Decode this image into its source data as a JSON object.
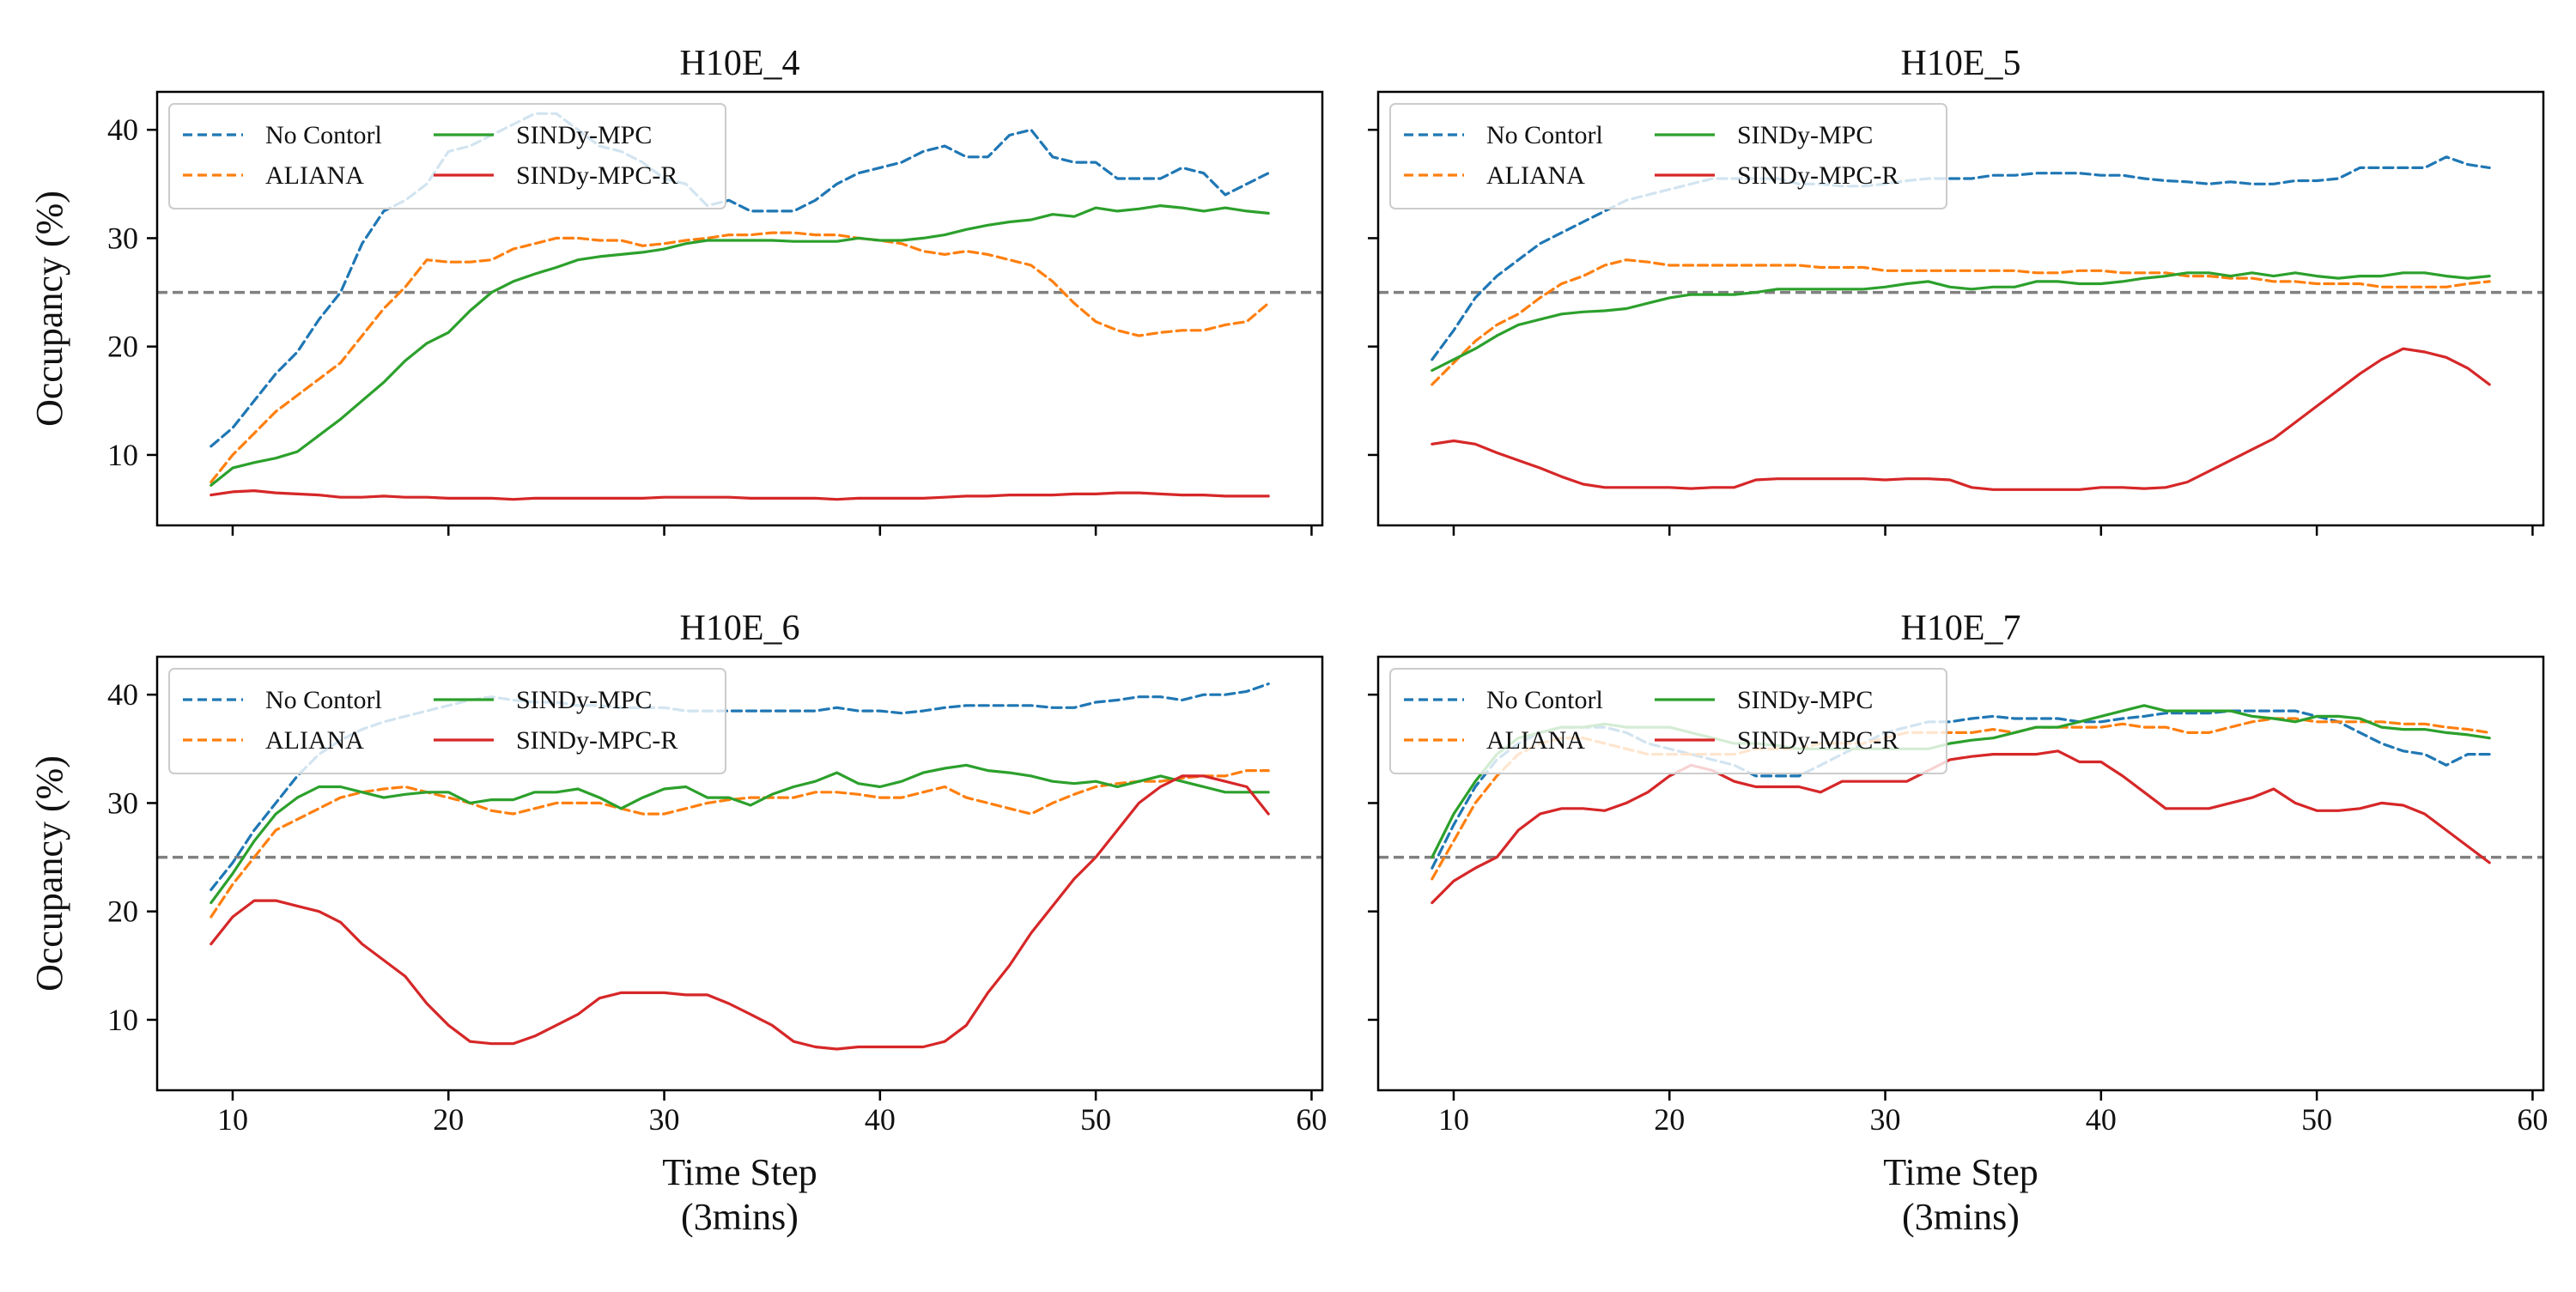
{
  "chart_data": {
    "type": "line",
    "xlabel": [
      "Time Step",
      "(3mins)"
    ],
    "ylabel": "Occupancy (%)",
    "xlim": [
      6.5,
      60.5
    ],
    "ylim": [
      3.5,
      43.5
    ],
    "xticks": [
      10,
      20,
      30,
      40,
      50,
      60
    ],
    "yticks": [
      10,
      20,
      30,
      40
    ],
    "reference_line": {
      "y": 25,
      "style": "dashed",
      "color": "#808080"
    },
    "legend": {
      "placement": "top-left",
      "columns": 2
    },
    "series_styles": [
      {
        "name": "No Contorl",
        "color": "#1f77b4",
        "dashed": true
      },
      {
        "name": "ALIANA",
        "color": "#ff7f0e",
        "dashed": true
      },
      {
        "name": "SINDy-MPC",
        "color": "#2ca02c",
        "dashed": false
      },
      {
        "name": "SINDy-MPC-R",
        "color": "#d62728",
        "dashed": false
      }
    ],
    "x": [
      9,
      10,
      11,
      12,
      13,
      14,
      15,
      16,
      17,
      18,
      19,
      20,
      21,
      22,
      23,
      24,
      25,
      26,
      27,
      28,
      29,
      30,
      31,
      32,
      33,
      34,
      35,
      36,
      37,
      38,
      39,
      40,
      41,
      42,
      43,
      44,
      45,
      46,
      47,
      48,
      49,
      50,
      51,
      52,
      53,
      54,
      55,
      56,
      57,
      58
    ],
    "panels": [
      {
        "title": "H10E_4",
        "series": [
          {
            "name": "No Contorl",
            "values": [
              10.8,
              12.5,
              15.0,
              17.5,
              19.5,
              22.5,
              25.0,
              29.5,
              32.5,
              33.5,
              35.0,
              38.0,
              38.5,
              39.5,
              40.5,
              41.5,
              41.5,
              40.0,
              38.5,
              38.0,
              37.0,
              35.5,
              35.0,
              33.0,
              33.5,
              32.5,
              32.5,
              32.5,
              33.5,
              35.0,
              36.0,
              36.5,
              37.0,
              38.0,
              38.5,
              37.5,
              37.5,
              39.5,
              40.0,
              37.5,
              37.0,
              37.0,
              35.5,
              35.5,
              35.5,
              36.5,
              36.0,
              34.0,
              35.0,
              36.0
            ]
          },
          {
            "name": "ALIANA",
            "values": [
              7.5,
              10.0,
              12.0,
              14.0,
              15.5,
              17.0,
              18.5,
              21.0,
              23.5,
              25.5,
              28.0,
              27.8,
              27.8,
              28.0,
              29.0,
              29.5,
              30.0,
              30.0,
              29.8,
              29.8,
              29.3,
              29.5,
              29.8,
              30.0,
              30.3,
              30.3,
              30.5,
              30.5,
              30.3,
              30.3,
              30.0,
              29.8,
              29.5,
              28.8,
              28.5,
              28.8,
              28.5,
              28.0,
              27.5,
              26.0,
              24.0,
              22.3,
              21.5,
              21.0,
              21.3,
              21.5,
              21.5,
              22.0,
              22.3,
              24.0
            ]
          },
          {
            "name": "SINDy-MPC",
            "values": [
              7.2,
              8.8,
              9.3,
              9.7,
              10.3,
              11.8,
              13.3,
              15.0,
              16.7,
              18.7,
              20.3,
              21.3,
              23.3,
              25.0,
              26.0,
              26.7,
              27.3,
              28.0,
              28.3,
              28.5,
              28.7,
              29.0,
              29.5,
              29.8,
              29.8,
              29.8,
              29.8,
              29.7,
              29.7,
              29.7,
              30.0,
              29.8,
              29.8,
              30.0,
              30.3,
              30.8,
              31.2,
              31.5,
              31.7,
              32.2,
              32.0,
              32.8,
              32.5,
              32.7,
              33.0,
              32.8,
              32.5,
              32.8,
              32.5,
              32.3
            ]
          },
          {
            "name": "SINDy-MPC-R",
            "values": [
              6.3,
              6.6,
              6.7,
              6.5,
              6.4,
              6.3,
              6.1,
              6.1,
              6.2,
              6.1,
              6.1,
              6.0,
              6.0,
              6.0,
              5.9,
              6.0,
              6.0,
              6.0,
              6.0,
              6.0,
              6.0,
              6.1,
              6.1,
              6.1,
              6.1,
              6.0,
              6.0,
              6.0,
              6.0,
              5.9,
              6.0,
              6.0,
              6.0,
              6.0,
              6.1,
              6.2,
              6.2,
              6.3,
              6.3,
              6.3,
              6.4,
              6.4,
              6.5,
              6.5,
              6.4,
              6.3,
              6.3,
              6.2,
              6.2,
              6.2
            ]
          }
        ]
      },
      {
        "title": "H10E_5",
        "series": [
          {
            "name": "No Contorl",
            "values": [
              18.8,
              21.5,
              24.5,
              26.5,
              28.0,
              29.5,
              30.5,
              31.5,
              32.5,
              33.5,
              34.0,
              34.5,
              35.0,
              35.5,
              35.5,
              35.5,
              35.5,
              35.0,
              35.0,
              34.8,
              34.8,
              35.0,
              35.3,
              35.5,
              35.5,
              35.5,
              35.8,
              35.8,
              36.0,
              36.0,
              36.0,
              35.8,
              35.8,
              35.5,
              35.3,
              35.2,
              35.0,
              35.2,
              35.0,
              35.0,
              35.3,
              35.3,
              35.5,
              36.5,
              36.5,
              36.5,
              36.5,
              37.5,
              36.8,
              36.5
            ]
          },
          {
            "name": "ALIANA",
            "values": [
              16.5,
              18.5,
              20.5,
              22.0,
              23.0,
              24.5,
              25.8,
              26.5,
              27.5,
              28.0,
              27.8,
              27.5,
              27.5,
              27.5,
              27.5,
              27.5,
              27.5,
              27.5,
              27.3,
              27.3,
              27.3,
              27.0,
              27.0,
              27.0,
              27.0,
              27.0,
              27.0,
              27.0,
              26.8,
              26.8,
              27.0,
              27.0,
              26.8,
              26.8,
              26.8,
              26.5,
              26.5,
              26.3,
              26.3,
              26.0,
              26.0,
              25.8,
              25.8,
              25.8,
              25.5,
              25.5,
              25.5,
              25.5,
              25.8,
              26.0
            ]
          },
          {
            "name": "SINDy-MPC",
            "values": [
              17.8,
              18.8,
              19.8,
              21.0,
              22.0,
              22.5,
              23.0,
              23.2,
              23.3,
              23.5,
              24.0,
              24.5,
              24.8,
              24.8,
              24.8,
              25.0,
              25.3,
              25.3,
              25.3,
              25.3,
              25.3,
              25.5,
              25.8,
              26.0,
              25.5,
              25.3,
              25.5,
              25.5,
              26.0,
              26.0,
              25.8,
              25.8,
              26.0,
              26.3,
              26.5,
              26.8,
              26.8,
              26.5,
              26.8,
              26.5,
              26.8,
              26.5,
              26.3,
              26.5,
              26.5,
              26.8,
              26.8,
              26.5,
              26.3,
              26.5
            ]
          },
          {
            "name": "SINDy-MPC-R",
            "values": [
              11.0,
              11.3,
              11.0,
              10.2,
              9.5,
              8.8,
              8.0,
              7.3,
              7.0,
              7.0,
              7.0,
              7.0,
              6.9,
              7.0,
              7.0,
              7.7,
              7.8,
              7.8,
              7.8,
              7.8,
              7.8,
              7.7,
              7.8,
              7.8,
              7.7,
              7.0,
              6.8,
              6.8,
              6.8,
              6.8,
              6.8,
              7.0,
              7.0,
              6.9,
              7.0,
              7.5,
              8.5,
              9.5,
              10.5,
              11.5,
              13.0,
              14.5,
              16.0,
              17.5,
              18.8,
              19.8,
              19.5,
              19.0,
              18.0,
              16.5
            ]
          }
        ]
      },
      {
        "title": "H10E_6",
        "series": [
          {
            "name": "No Contorl",
            "values": [
              22.0,
              24.5,
              27.5,
              30.0,
              32.5,
              34.5,
              35.8,
              36.8,
              37.5,
              38.0,
              38.5,
              39.0,
              39.5,
              39.8,
              39.5,
              39.3,
              39.3,
              39.0,
              39.0,
              38.8,
              38.8,
              38.8,
              38.5,
              38.5,
              38.5,
              38.5,
              38.5,
              38.5,
              38.5,
              38.8,
              38.5,
              38.5,
              38.3,
              38.5,
              38.8,
              39.0,
              39.0,
              39.0,
              39.0,
              38.8,
              38.8,
              39.3,
              39.5,
              39.8,
              39.8,
              39.5,
              40.0,
              40.0,
              40.3,
              41.0
            ]
          },
          {
            "name": "ALIANA",
            "values": [
              19.5,
              22.5,
              25.0,
              27.5,
              28.5,
              29.5,
              30.5,
              31.0,
              31.3,
              31.5,
              31.0,
              30.5,
              30.0,
              29.3,
              29.0,
              29.5,
              30.0,
              30.0,
              30.0,
              29.5,
              29.0,
              29.0,
              29.5,
              30.0,
              30.3,
              30.5,
              30.5,
              30.5,
              31.0,
              31.0,
              30.8,
              30.5,
              30.5,
              31.0,
              31.5,
              30.5,
              30.0,
              29.5,
              29.0,
              30.0,
              30.8,
              31.5,
              31.8,
              32.0,
              32.0,
              32.3,
              32.5,
              32.5,
              33.0,
              33.0
            ]
          },
          {
            "name": "SINDy-MPC",
            "values": [
              20.8,
              23.5,
              26.5,
              29.0,
              30.5,
              31.5,
              31.5,
              31.0,
              30.5,
              30.8,
              31.0,
              31.0,
              30.0,
              30.3,
              30.3,
              31.0,
              31.0,
              31.3,
              30.5,
              29.5,
              30.5,
              31.3,
              31.5,
              30.5,
              30.5,
              29.8,
              30.8,
              31.5,
              32.0,
              32.8,
              31.8,
              31.5,
              32.0,
              32.8,
              33.2,
              33.5,
              33.0,
              32.8,
              32.5,
              32.0,
              31.8,
              32.0,
              31.5,
              32.0,
              32.5,
              32.0,
              31.5,
              31.0,
              31.0,
              31.0
            ]
          },
          {
            "name": "SINDy-MPC-R",
            "values": [
              17.0,
              19.5,
              21.0,
              21.0,
              20.5,
              20.0,
              19.0,
              17.0,
              15.5,
              14.0,
              11.5,
              9.5,
              8.0,
              7.8,
              7.8,
              8.5,
              9.5,
              10.5,
              12.0,
              12.5,
              12.5,
              12.5,
              12.3,
              12.3,
              11.5,
              10.5,
              9.5,
              8.0,
              7.5,
              7.3,
              7.5,
              7.5,
              7.5,
              7.5,
              8.0,
              9.5,
              12.5,
              15.0,
              18.0,
              20.5,
              23.0,
              25.0,
              27.5,
              30.0,
              31.5,
              32.5,
              32.5,
              32.0,
              31.5,
              29.0
            ]
          }
        ]
      },
      {
        "title": "H10E_7",
        "series": [
          {
            "name": "No Contorl",
            "values": [
              24.0,
              28.0,
              31.5,
              34.0,
              35.5,
              36.5,
              37.0,
              37.0,
              37.0,
              36.5,
              35.5,
              35.0,
              34.5,
              34.0,
              33.5,
              32.5,
              32.5,
              32.5,
              33.5,
              34.5,
              35.5,
              36.5,
              37.0,
              37.5,
              37.5,
              37.8,
              38.0,
              37.8,
              37.8,
              37.8,
              37.5,
              37.5,
              37.8,
              38.0,
              38.3,
              38.3,
              38.3,
              38.5,
              38.5,
              38.5,
              38.5,
              38.0,
              37.5,
              36.5,
              35.5,
              34.8,
              34.5,
              33.5,
              34.5,
              34.5
            ]
          },
          {
            "name": "ALIANA",
            "values": [
              23.0,
              26.5,
              30.0,
              32.5,
              34.5,
              35.5,
              36.0,
              36.0,
              35.5,
              35.0,
              34.5,
              34.5,
              34.5,
              34.5,
              34.5,
              35.0,
              35.0,
              35.0,
              35.5,
              35.5,
              35.5,
              36.0,
              36.5,
              36.5,
              36.5,
              36.5,
              36.8,
              36.5,
              37.0,
              37.0,
              37.0,
              37.0,
              37.3,
              37.0,
              37.0,
              36.5,
              36.5,
              37.0,
              37.5,
              37.8,
              37.8,
              37.5,
              37.5,
              37.5,
              37.5,
              37.3,
              37.3,
              37.0,
              36.8,
              36.5
            ]
          },
          {
            "name": "SINDy-MPC",
            "values": [
              25.0,
              29.0,
              32.0,
              34.5,
              36.0,
              36.5,
              37.0,
              37.0,
              37.3,
              37.0,
              37.0,
              37.0,
              36.5,
              36.0,
              35.5,
              35.5,
              35.3,
              35.0,
              35.0,
              35.0,
              35.0,
              35.0,
              35.0,
              35.0,
              35.5,
              35.8,
              36.0,
              36.5,
              37.0,
              37.0,
              37.5,
              38.0,
              38.5,
              39.0,
              38.5,
              38.5,
              38.5,
              38.5,
              38.0,
              37.8,
              37.5,
              38.0,
              38.0,
              37.8,
              37.0,
              36.8,
              36.8,
              36.5,
              36.3,
              36.0
            ]
          },
          {
            "name": "SINDy-MPC-R",
            "values": [
              20.8,
              22.8,
              24.0,
              25.0,
              27.5,
              29.0,
              29.5,
              29.5,
              29.3,
              30.0,
              31.0,
              32.5,
              33.5,
              33.0,
              32.0,
              31.5,
              31.5,
              31.5,
              31.0,
              32.0,
              32.0,
              32.0,
              32.0,
              33.0,
              34.0,
              34.3,
              34.5,
              34.5,
              34.5,
              34.8,
              33.8,
              33.8,
              32.5,
              31.0,
              29.5,
              29.5,
              29.5,
              30.0,
              30.5,
              31.3,
              30.0,
              29.3,
              29.3,
              29.5,
              30.0,
              29.8,
              29.0,
              27.5,
              26.0,
              24.5
            ]
          }
        ]
      }
    ]
  }
}
